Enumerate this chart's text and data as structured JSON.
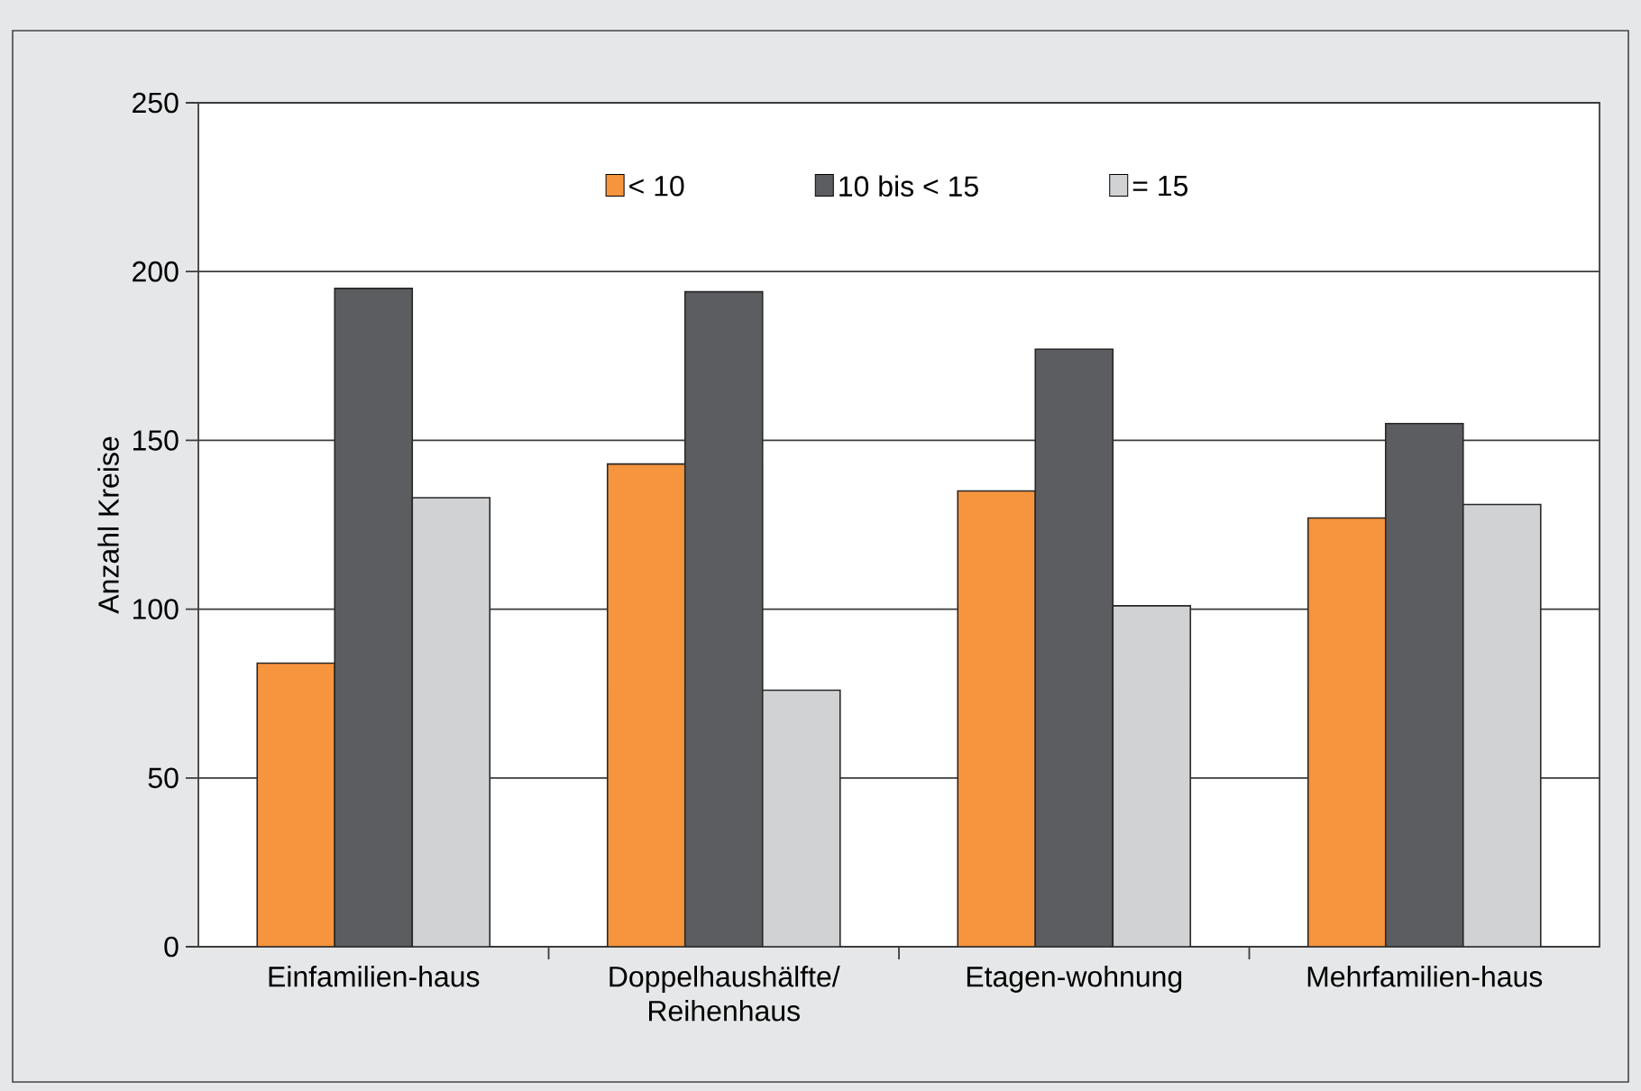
{
  "chart_data": {
    "type": "bar",
    "ylabel": "Anzahl Kreise",
    "categories": [
      "Einfamilien-haus",
      "Doppelhaushälfte/ Reihenhaus",
      "Etagen-wohnung",
      "Mehrfamilien-haus"
    ],
    "series": [
      {
        "name": "< 10",
        "color": "#f7943e",
        "values": [
          84,
          143,
          135,
          127
        ]
      },
      {
        "name": "10 bis < 15",
        "color": "#5c5d61",
        "values": [
          195,
          194,
          177,
          155
        ]
      },
      {
        "name": "= 15",
        "color": "#d1d2d4",
        "values": [
          133,
          76,
          101,
          131
        ]
      }
    ],
    "ylim": [
      0,
      250
    ],
    "yticks": [
      0,
      50,
      100,
      150,
      200,
      250
    ],
    "grid": "y",
    "legend": "top"
  }
}
